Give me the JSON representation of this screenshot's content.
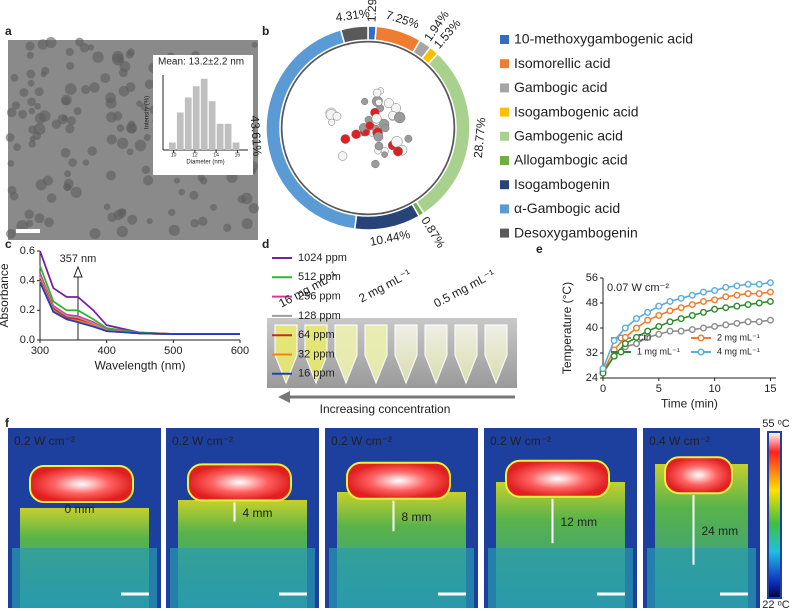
{
  "panel_labels": [
    "a",
    "b",
    "c",
    "d",
    "e",
    "f"
  ],
  "chart_data": [
    {
      "type": "histogram",
      "title": "Mean: 13.2±2.2 nm",
      "xlabel": "Diameter (nm)",
      "ylabel": "Intensity (%)",
      "bins": [
        9.5,
        10.25,
        11,
        11.75,
        12.5,
        13.25,
        14,
        14.75,
        15.5,
        16.25
      ],
      "values": [
        2,
        10,
        14,
        17,
        19,
        13,
        7,
        7,
        2
      ],
      "xlim": [
        9,
        17
      ],
      "ylim": [
        0,
        20
      ],
      "xticks": [
        10,
        12,
        14,
        16
      ],
      "color": "#bfbfbf"
    },
    {
      "type": "pie",
      "donut": true,
      "categories": [
        "10-methoxygambogenic acid",
        "Isomorellic acid",
        "Gambogic acid",
        "Isogambogenic acid",
        "Gambogenic acid",
        "Allogambogic acid",
        "Isogambogenin",
        "α-Gambogic acid",
        "Desoxygambogenin"
      ],
      "values": [
        1.29,
        7.25,
        1.94,
        1.53,
        28.77,
        0.87,
        10.44,
        43.61,
        4.31
      ],
      "value_labels": [
        "1.29%",
        "7.25%",
        "1.94%",
        "1.53%",
        "28.77%",
        "0.87%",
        "10.44%",
        "43.61%",
        "4.31%"
      ],
      "colors": [
        "#2f6fc2",
        "#ee7d31",
        "#a5a5a5",
        "#fcc000",
        "#a9d18e",
        "#70ad47",
        "#264478",
        "#5b9bd5",
        "#595959"
      ]
    },
    {
      "type": "line",
      "xlabel": "Wavelength (nm)",
      "ylabel": "Absorbance",
      "marker_line": {
        "x": 357,
        "label": "357 nm"
      },
      "x": [
        300,
        320,
        340,
        357,
        380,
        400,
        450,
        500,
        550,
        600
      ],
      "series": [
        {
          "name": "1024 ppm",
          "color": "#7b1fa2",
          "values": [
            0.6,
            0.35,
            0.29,
            0.29,
            0.2,
            0.1,
            0.05,
            0.04,
            0.04,
            0.04
          ]
        },
        {
          "name": "512 ppm",
          "color": "#2eb82e",
          "values": [
            0.5,
            0.26,
            0.2,
            0.2,
            0.14,
            0.08,
            0.05,
            0.04,
            0.04,
            0.04
          ]
        },
        {
          "name": "256 ppm",
          "color": "#e0349b",
          "values": [
            0.45,
            0.23,
            0.17,
            0.16,
            0.12,
            0.07,
            0.045,
            0.04,
            0.04,
            0.04
          ]
        },
        {
          "name": "128 ppm",
          "color": "#9e9e9e",
          "values": [
            0.43,
            0.22,
            0.16,
            0.15,
            0.11,
            0.065,
            0.045,
            0.04,
            0.04,
            0.04
          ]
        },
        {
          "name": "64 ppm",
          "color": "#c62828",
          "values": [
            0.41,
            0.21,
            0.15,
            0.14,
            0.1,
            0.06,
            0.045,
            0.04,
            0.04,
            0.04
          ]
        },
        {
          "name": "32 ppm",
          "color": "#ff7f0e",
          "values": [
            0.4,
            0.2,
            0.14,
            0.13,
            0.1,
            0.06,
            0.045,
            0.04,
            0.04,
            0.04
          ]
        },
        {
          "name": "16 ppm",
          "color": "#1f3fbf",
          "values": [
            0.39,
            0.19,
            0.14,
            0.12,
            0.09,
            0.06,
            0.045,
            0.04,
            0.04,
            0.04
          ]
        }
      ],
      "xlim": [
        300,
        600
      ],
      "ylim": [
        0,
        0.6
      ],
      "xticks": [
        300,
        400,
        500,
        600
      ],
      "yticks": [
        {
          "value": 0,
          "label": "0.0"
        },
        0.2,
        0.4,
        0.6
      ],
      "legend": "right"
    },
    {
      "type": "line",
      "annotation": "0.07 W cm⁻²",
      "xlabel": "Time (min)",
      "ylabel": "Temperature (°C)",
      "markers": true,
      "x": [
        0,
        1,
        2,
        3,
        4,
        5,
        6,
        7,
        8,
        9,
        10,
        11,
        12,
        13,
        14,
        15
      ],
      "series": [
        {
          "name": "Ctrl",
          "color": "#8c8c8c",
          "values": [
            26,
            31,
            34,
            35,
            37,
            38,
            39,
            39,
            39.5,
            40,
            40.5,
            41,
            41.5,
            42,
            42,
            42.5
          ]
        },
        {
          "name": "2 mg mL⁻¹",
          "color": "#f07b2a",
          "values": [
            26,
            33,
            37,
            40,
            42.5,
            44,
            45.5,
            46.5,
            47.5,
            48.5,
            49,
            50,
            50.5,
            51,
            51,
            51.5
          ]
        },
        {
          "name": "1 mg mL⁻¹",
          "color": "#2e8b2e",
          "values": [
            25.5,
            31,
            35,
            37,
            39,
            40.5,
            42,
            43,
            44,
            45,
            46,
            46.5,
            47,
            47.5,
            48,
            48.5
          ]
        },
        {
          "name": "4 mg mL⁻¹",
          "color": "#5aaed8",
          "values": [
            27,
            36,
            40,
            43,
            45,
            47,
            48.5,
            49.5,
            50.5,
            51.5,
            52,
            53,
            53.5,
            54,
            54,
            54.5
          ]
        }
      ],
      "xlim": [
        0,
        15.5
      ],
      "ylim": [
        24,
        56
      ],
      "xticks": [
        0,
        5,
        10,
        15
      ],
      "yticks": [
        24,
        32,
        40,
        48,
        56
      ],
      "legend": "lower-right"
    }
  ],
  "panel_d": {
    "labels": [
      "16 mg mL⁻¹",
      "2 mg mL⁻¹",
      "0.5 mg mL⁻¹"
    ],
    "arrow_label": "Increasing concentration"
  },
  "panel_f": {
    "images": [
      {
        "power": "0.2 W cm⁻²",
        "distance": "0 mm"
      },
      {
        "power": "0.2 W cm⁻²",
        "distance": "4 mm"
      },
      {
        "power": "0.2 W cm⁻²",
        "distance": "8 mm"
      },
      {
        "power": "0.2 W cm⁻²",
        "distance": "12 mm"
      },
      {
        "power": "0.4 W cm⁻²",
        "distance": "24 mm"
      }
    ],
    "colorbar": {
      "max": "55 ᵒC",
      "min": "22 ᵒC"
    }
  }
}
